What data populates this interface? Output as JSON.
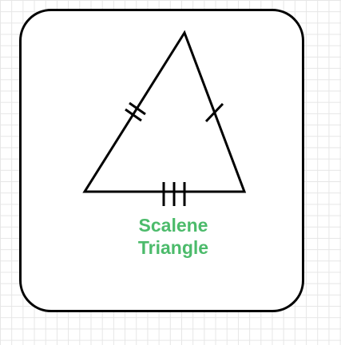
{
  "diagram": {
    "label_line1": "Scalene",
    "label_line2": "Triangle",
    "label_color": "#4cbb6b",
    "stroke_color": "#000000",
    "background_grid": true
  }
}
